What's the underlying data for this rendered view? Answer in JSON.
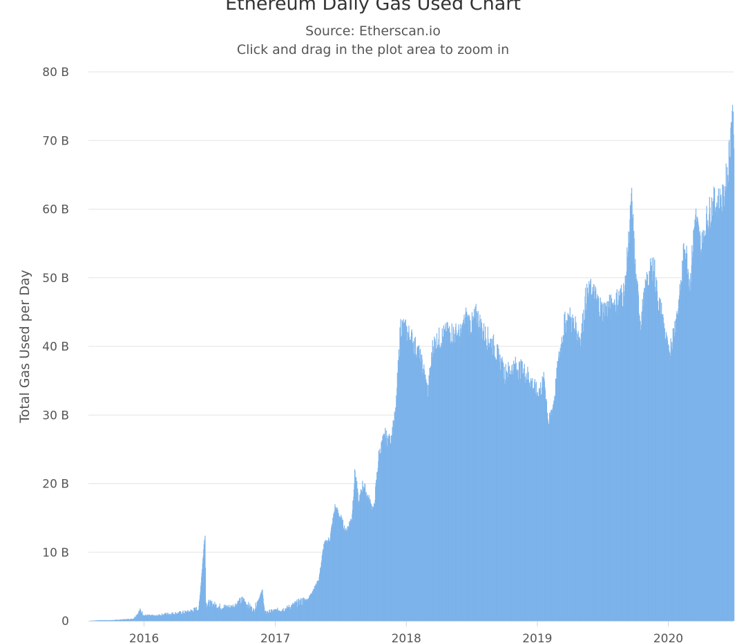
{
  "chart_data": {
    "type": "bar",
    "title": "Ethereum Daily Gas Used Chart",
    "subtitle": "Source: Etherscan.io",
    "hint": "Click and drag in the plot area to zoom in",
    "ylabel": "Total Gas Used per Day",
    "xlabel": "",
    "y_unit": "B",
    "ylim": [
      0,
      80
    ],
    "y_ticks": [
      {
        "value": 0,
        "label": "0"
      },
      {
        "value": 10,
        "label": "10 B"
      },
      {
        "value": 20,
        "label": "20 B"
      },
      {
        "value": 30,
        "label": "30 B"
      },
      {
        "value": 40,
        "label": "40 B"
      },
      {
        "value": 50,
        "label": "50 B"
      },
      {
        "value": 60,
        "label": "60 B"
      },
      {
        "value": 70,
        "label": "70 B"
      },
      {
        "value": 80,
        "label": "80 B"
      }
    ],
    "x_range": [
      "2015-07-30",
      "2020-07-01"
    ],
    "x_ticks": [
      {
        "date": "2016-01-01",
        "label": "2016"
      },
      {
        "date": "2017-01-01",
        "label": "2017"
      },
      {
        "date": "2018-01-01",
        "label": "2018"
      },
      {
        "date": "2019-01-01",
        "label": "2019"
      },
      {
        "date": "2020-01-01",
        "label": "2020"
      }
    ],
    "grid": true,
    "legend": "none",
    "color": "#7cb3ea",
    "series": [
      {
        "points": [
          [
            "2015-07-30",
            0.0
          ],
          [
            "2015-09-01",
            0.1
          ],
          [
            "2015-10-01",
            0.1
          ],
          [
            "2015-11-01",
            0.2
          ],
          [
            "2015-12-01",
            0.3
          ],
          [
            "2015-12-20",
            1.5
          ],
          [
            "2016-01-01",
            0.8
          ],
          [
            "2016-02-01",
            0.7
          ],
          [
            "2016-03-01",
            1.0
          ],
          [
            "2016-04-01",
            1.1
          ],
          [
            "2016-05-01",
            1.3
          ],
          [
            "2016-06-01",
            1.8
          ],
          [
            "2016-06-18",
            13.0
          ],
          [
            "2016-06-20",
            2.5
          ],
          [
            "2016-07-01",
            2.5
          ],
          [
            "2016-08-01",
            2.0
          ],
          [
            "2016-09-01",
            2.0
          ],
          [
            "2016-10-01",
            3.0
          ],
          [
            "2016-11-01",
            1.5
          ],
          [
            "2016-11-25",
            4.5
          ],
          [
            "2016-12-01",
            1.2
          ],
          [
            "2017-01-01",
            1.5
          ],
          [
            "2017-02-01",
            1.8
          ],
          [
            "2017-03-01",
            2.5
          ],
          [
            "2017-04-01",
            3.2
          ],
          [
            "2017-05-01",
            6.0
          ],
          [
            "2017-05-15",
            11.0
          ],
          [
            "2017-06-01",
            12.0
          ],
          [
            "2017-06-15",
            16.5
          ],
          [
            "2017-07-01",
            15.0
          ],
          [
            "2017-07-15",
            13.0
          ],
          [
            "2017-08-01",
            15.0
          ],
          [
            "2017-08-10",
            22.0
          ],
          [
            "2017-08-20",
            17.0
          ],
          [
            "2017-09-01",
            20.0
          ],
          [
            "2017-09-15",
            18.0
          ],
          [
            "2017-10-01",
            16.0
          ],
          [
            "2017-10-15",
            24.0
          ],
          [
            "2017-11-01",
            27.0
          ],
          [
            "2017-11-15",
            26.0
          ],
          [
            "2017-12-01",
            30.0
          ],
          [
            "2017-12-15",
            43.0
          ],
          [
            "2018-01-01",
            42.0
          ],
          [
            "2018-01-15",
            41.0
          ],
          [
            "2018-02-01",
            39.0
          ],
          [
            "2018-02-15",
            37.0
          ],
          [
            "2018-03-01",
            33.0
          ],
          [
            "2018-03-15",
            40.0
          ],
          [
            "2018-04-01",
            41.0
          ],
          [
            "2018-05-01",
            42.0
          ],
          [
            "2018-06-01",
            41.5
          ],
          [
            "2018-06-15",
            44.0
          ],
          [
            "2018-07-01",
            43.0
          ],
          [
            "2018-07-15",
            44.5
          ],
          [
            "2018-08-01",
            42.0
          ],
          [
            "2018-09-01",
            40.0
          ],
          [
            "2018-10-01",
            36.0
          ],
          [
            "2018-11-01",
            37.0
          ],
          [
            "2018-12-01",
            36.0
          ],
          [
            "2019-01-01",
            33.0
          ],
          [
            "2019-01-20",
            35.0
          ],
          [
            "2019-02-01",
            28.5
          ],
          [
            "2019-02-15",
            32.0
          ],
          [
            "2019-03-01",
            38.0
          ],
          [
            "2019-03-15",
            43.0
          ],
          [
            "2019-04-01",
            44.0
          ],
          [
            "2019-05-01",
            41.0
          ],
          [
            "2019-05-15",
            47.0
          ],
          [
            "2019-06-01",
            48.0
          ],
          [
            "2019-07-01",
            45.0
          ],
          [
            "2019-08-01",
            46.0
          ],
          [
            "2019-09-01",
            48.0
          ],
          [
            "2019-09-20",
            61.0
          ],
          [
            "2019-10-01",
            50.0
          ],
          [
            "2019-10-15",
            43.5
          ],
          [
            "2019-11-01",
            49.0
          ],
          [
            "2019-11-20",
            52.0
          ],
          [
            "2019-12-01",
            47.0
          ],
          [
            "2019-12-15",
            44.0
          ],
          [
            "2020-01-01",
            38.5
          ],
          [
            "2020-01-15",
            42.0
          ],
          [
            "2020-02-01",
            47.0
          ],
          [
            "2020-02-15",
            55.0
          ],
          [
            "2020-03-01",
            49.0
          ],
          [
            "2020-03-15",
            59.0
          ],
          [
            "2020-04-01",
            54.0
          ],
          [
            "2020-04-15",
            58.0
          ],
          [
            "2020-05-01",
            60.5
          ],
          [
            "2020-06-01",
            61.0
          ],
          [
            "2020-06-15",
            66.0
          ],
          [
            "2020-06-25",
            73.5
          ],
          [
            "2020-07-01",
            72.0
          ]
        ]
      }
    ]
  }
}
